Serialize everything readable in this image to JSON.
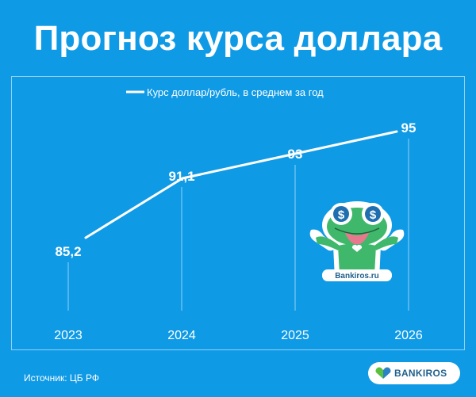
{
  "title": "Прогноз курса доллара",
  "source": "Источник: ЦБ РФ",
  "brand": {
    "logo_text": "BANKIROS",
    "sticker_text": "Bankiros.ru"
  },
  "colors": {
    "background": "#0f9ae6",
    "line": "#ffffff",
    "logo_text": "#1f5f8b",
    "logo_green": "#58c13d",
    "logo_blue": "#2b83c6",
    "mascot": "#3fb86b"
  },
  "chart_data": {
    "type": "line",
    "categories": [
      "2023",
      "2024",
      "2025",
      "2026"
    ],
    "series": [
      {
        "name": "Курс доллар/рубль, в среднем за год",
        "values": [
          85.2,
          91.1,
          93,
          95
        ],
        "labels": [
          "85,2",
          "91,1",
          "93",
          "95"
        ]
      }
    ],
    "legend": "top-center",
    "grid": false
  }
}
